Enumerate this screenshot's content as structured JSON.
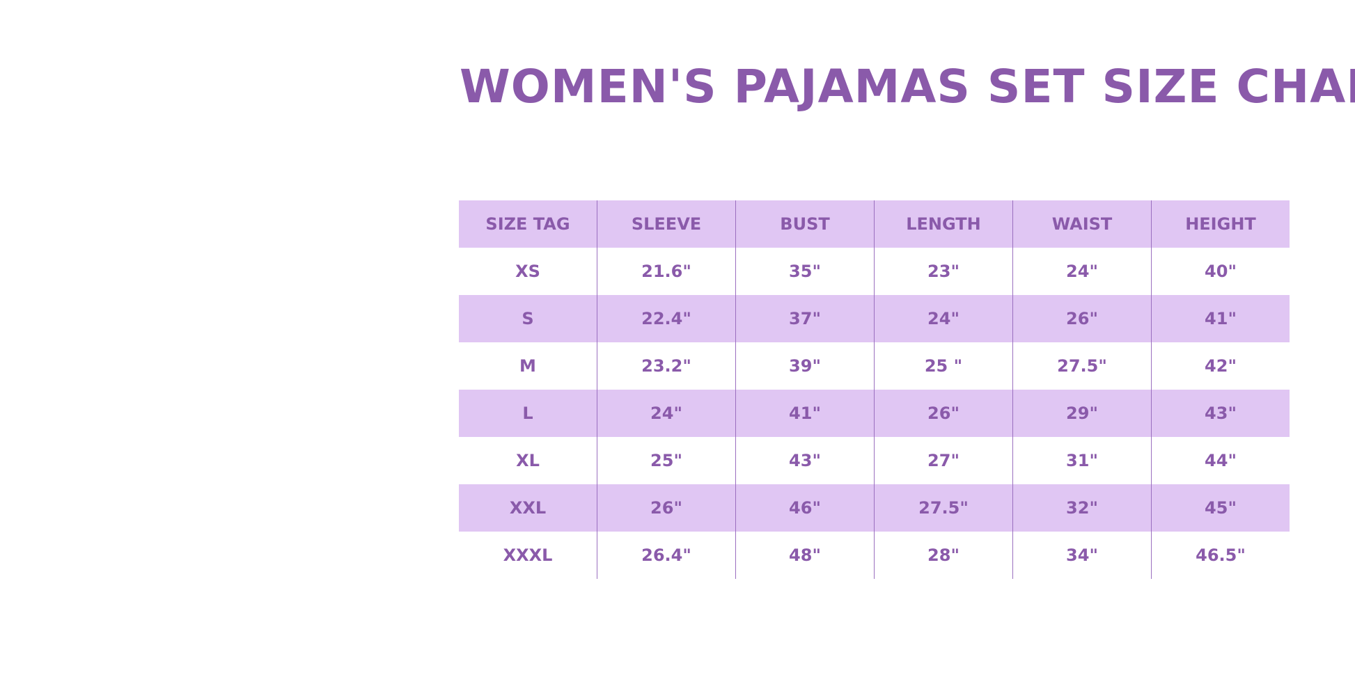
{
  "title": "WOMEN'S PAJAMAS SET SIZE CHART",
  "colors": {
    "text": "#8a5aaa",
    "row_fill": "#e0c6f3",
    "divider": "#9a6fbf"
  },
  "table": {
    "headers": [
      "SIZE TAG",
      "SLEEVE",
      "BUST",
      "LENGTH",
      "WAIST",
      "HEIGHT"
    ],
    "rows": [
      [
        "XS",
        "21.6\"",
        "35\"",
        "23\"",
        "24\"",
        "40\""
      ],
      [
        "S",
        "22.4\"",
        "37\"",
        "24\"",
        "26\"",
        "41\""
      ],
      [
        "M",
        "23.2\"",
        "39\"",
        "25 \"",
        "27.5\"",
        "42\""
      ],
      [
        "L",
        "24\"",
        "41\"",
        "26\"",
        "29\"",
        "43\""
      ],
      [
        "XL",
        "25\"",
        "43\"",
        "27\"",
        "31\"",
        "44\""
      ],
      [
        "XXL",
        "26\"",
        "46\"",
        "27.5\"",
        "32\"",
        "45\""
      ],
      [
        "XXXL",
        "26.4\"",
        "48\"",
        "28\"",
        "34\"",
        "46.5\""
      ]
    ]
  }
}
